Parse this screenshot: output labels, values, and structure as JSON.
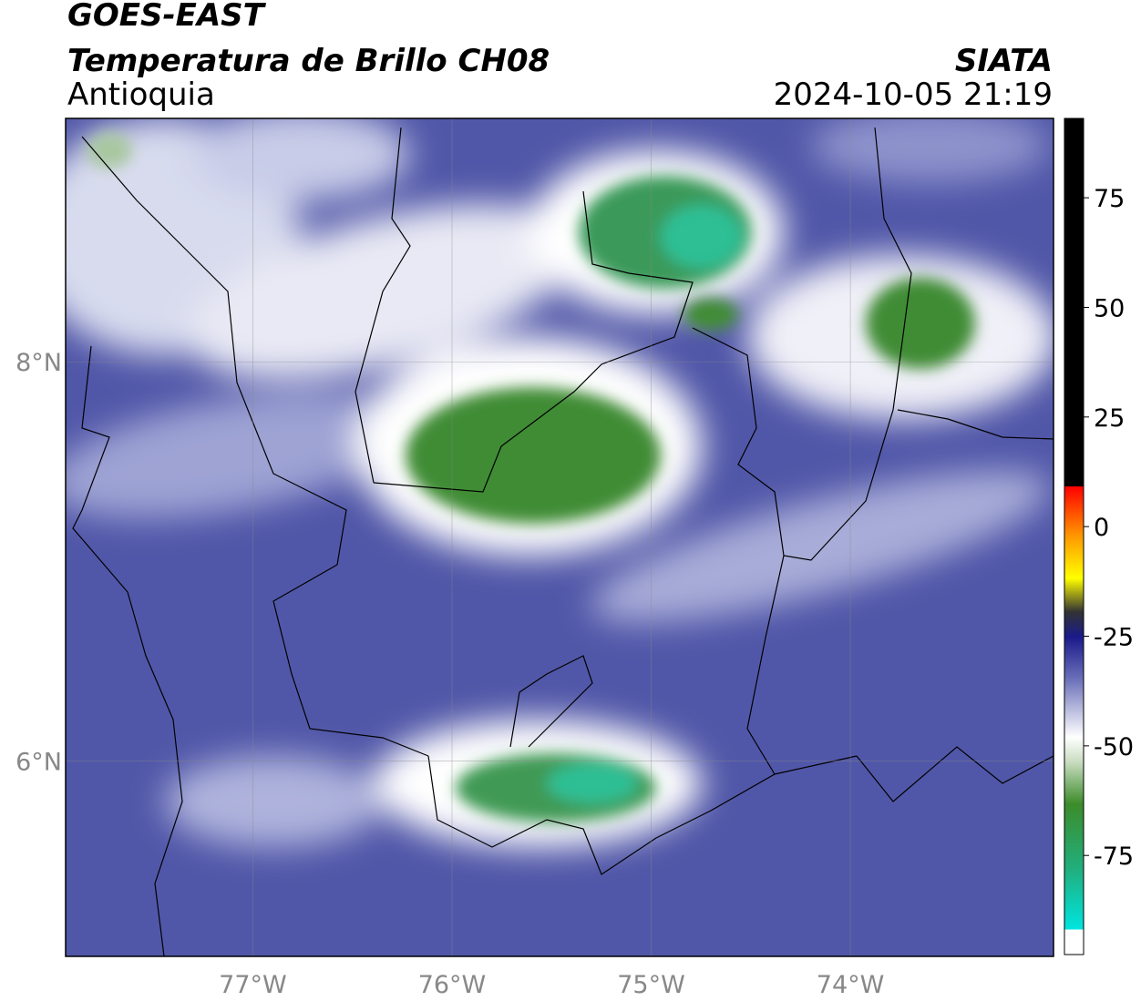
{
  "header": {
    "title": "GOES-EAST",
    "subtitle": "Temperatura de Brillo CH08",
    "region": "Antioquia",
    "source": "SIATA",
    "datetime": "2024-10-05 21:19"
  },
  "map": {
    "xlim": [
      -77.94,
      -72.98
    ],
    "ylim": [
      5.02,
      9.22
    ],
    "xticks": [
      {
        "value": -77,
        "label": "77°W"
      },
      {
        "value": -76,
        "label": "76°W"
      },
      {
        "value": -75,
        "label": "75°W"
      },
      {
        "value": -74,
        "label": "74°W"
      }
    ],
    "yticks": [
      {
        "value": 6,
        "label": "6°N"
      },
      {
        "value": 8,
        "label": "8°N"
      }
    ],
    "grid": true
  },
  "colorbar": {
    "lim": [
      -97.6,
      93.1
    ],
    "ticks": [
      75,
      50,
      25,
      0,
      -25,
      -50,
      -75
    ]
  }
}
